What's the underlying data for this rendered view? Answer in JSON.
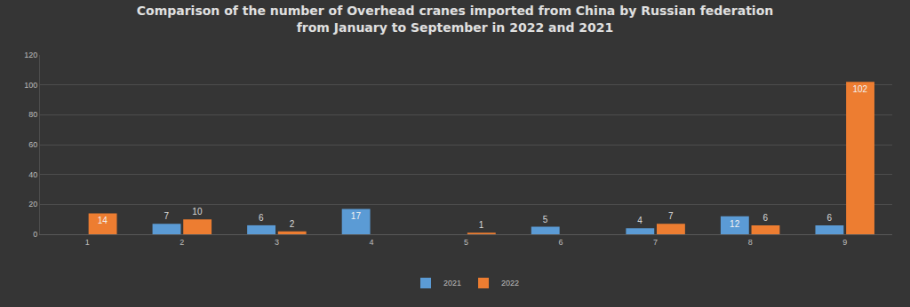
{
  "chart_data": {
    "type": "bar",
    "title": "Comparison of the number of Overhead cranes imported from China by Russian federation\nfrom January to September in 2022 and 2021",
    "categories": [
      "1",
      "2",
      "3",
      "4",
      "5",
      "6",
      "7",
      "8",
      "9"
    ],
    "series": [
      {
        "name": "2021",
        "color": "#5b9bd5",
        "values": [
          null,
          7,
          6,
          17,
          null,
          5,
          4,
          12,
          6
        ]
      },
      {
        "name": "2022",
        "color": "#ed7d31",
        "values": [
          14,
          10,
          2,
          null,
          1,
          null,
          7,
          6,
          102
        ]
      }
    ],
    "ylim": [
      0,
      120
    ],
    "yticks": [
      0,
      20,
      40,
      60,
      80,
      100,
      120
    ],
    "grid": true,
    "data_labels": true,
    "legend": "bottom"
  }
}
